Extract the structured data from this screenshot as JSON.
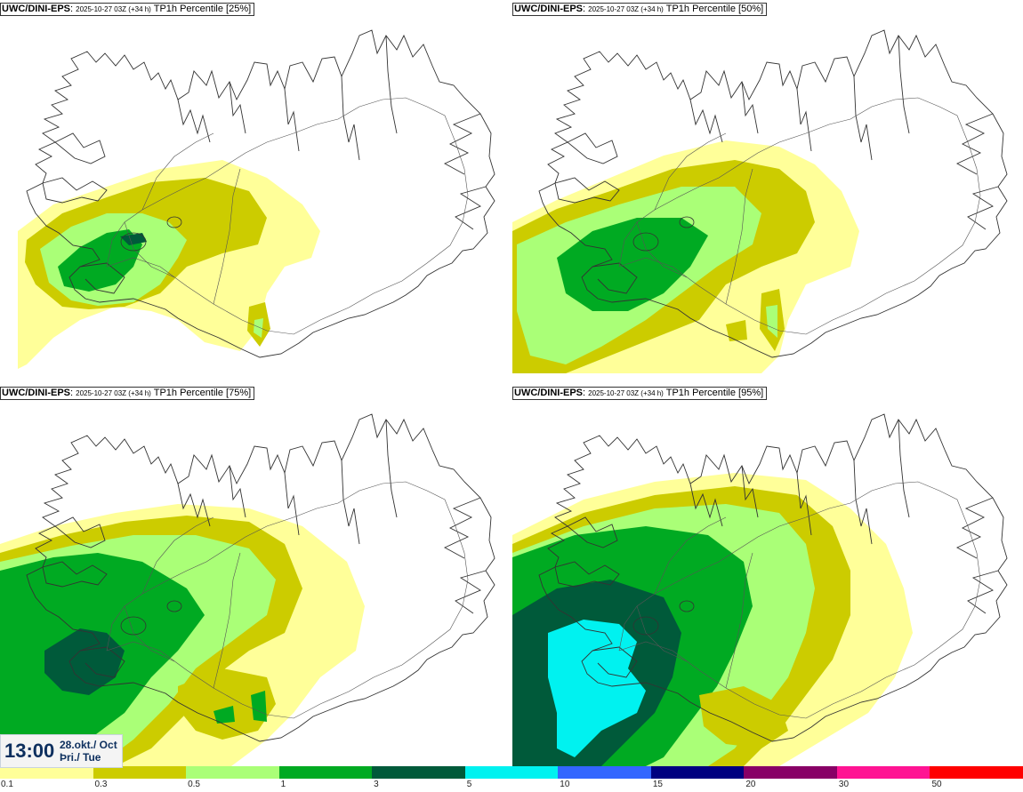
{
  "panels": [
    {
      "model": "UWC/DINI-EPS",
      "run": "2025-10-27 03Z (+34 h)",
      "field": "TP1h Percentile [25%]"
    },
    {
      "model": "UWC/DINI-EPS",
      "run": "2025-10-27 03Z (+34 h)",
      "field": "TP1h Percentile [50%]"
    },
    {
      "model": "UWC/DINI-EPS",
      "run": "2025-10-27 03Z (+34 h)",
      "field": "TP1h Percentile [75%]"
    },
    {
      "model": "UWC/DINI-EPS",
      "run": "2025-10-27 03Z (+34 h)",
      "field": "TP1h Percentile [95%]"
    }
  ],
  "valid_time": {
    "clock": "13:00",
    "date_line1": "28.okt./ Oct",
    "date_line2": "Þri./ Tue"
  },
  "legend": {
    "ticks": [
      "0.1",
      "0.3",
      "0.5",
      "1",
      "3",
      "5",
      "10",
      "15",
      "20",
      "30",
      "50"
    ],
    "colors": [
      "#ffff99",
      "#cccc00",
      "#aaff77",
      "#00aa22",
      "#005a3a",
      "#00f2f0",
      "#3366ff",
      "#000080",
      "#880066",
      "#ff1493",
      "#ff0000"
    ]
  }
}
